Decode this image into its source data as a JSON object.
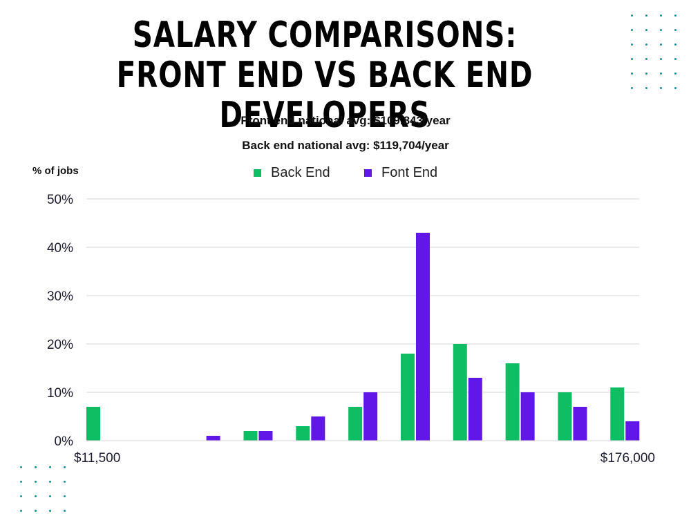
{
  "title": "SALARY COMPARISONS: FRONT END VS BACK END DEVELOPERS",
  "subtitle_front": "Front end national avg: $109.843/year",
  "subtitle_back": "Back end national avg: $119,704/year",
  "colors": {
    "back_end": "#0fbd63",
    "front_end": "#6017e8",
    "grid": "#d4d4d4",
    "dots": "#1a8f9a"
  },
  "chart_data": {
    "type": "bar",
    "ylabel": "% of jobs",
    "ylim": [
      0,
      50
    ],
    "yticks": [
      "0%",
      "10%",
      "20%",
      "30%",
      "40%",
      "50%"
    ],
    "x_start_label": "$11,500",
    "x_end_label": "$176,000",
    "legend_position": "top-center",
    "grid": true,
    "series": [
      {
        "name": "Back End",
        "key": "back_end",
        "values": [
          7,
          0,
          0,
          2,
          3,
          7,
          18,
          20,
          16,
          10,
          11
        ]
      },
      {
        "name": "Font End",
        "key": "front_end",
        "values": [
          0,
          0,
          1,
          2,
          5,
          10,
          43,
          13,
          10,
          7,
          4
        ]
      }
    ]
  }
}
